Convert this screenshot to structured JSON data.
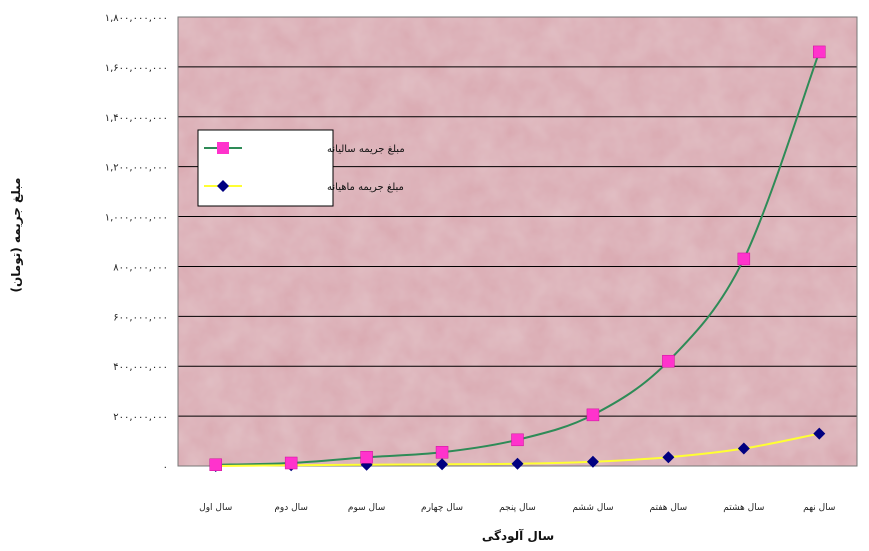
{
  "chart_data": {
    "type": "line",
    "title": "",
    "xlabel": "سال آلودگی",
    "ylabel": "مبلغ جریمه (تومان)",
    "categories": [
      "سال اول",
      "سال دوم",
      "سال سوم",
      "سال چهارم",
      "سال پنجم",
      "سال ششم",
      "سال هفتم",
      "سال هشتم",
      "سال نهم"
    ],
    "ylim": [
      0,
      1800000000
    ],
    "yticks": [
      0,
      200000000,
      400000000,
      600000000,
      800000000,
      1000000000,
      1200000000,
      1400000000,
      1600000000,
      1800000000
    ],
    "ytick_labels": [
      "۰",
      "۲۰۰,۰۰۰,۰۰۰",
      "۴۰۰,۰۰۰,۰۰۰",
      "۶۰۰,۰۰۰,۰۰۰",
      "۸۰۰,۰۰۰,۰۰۰",
      "۱,۰۰۰,۰۰۰,۰۰۰",
      "۱,۲۰۰,۰۰۰,۰۰۰",
      "۱,۴۰۰,۰۰۰,۰۰۰",
      "۱,۶۰۰,۰۰۰,۰۰۰",
      "۱,۸۰۰,۰۰۰,۰۰۰"
    ],
    "grid": true,
    "legend_position": "left",
    "series": [
      {
        "name": "مبلغ جریمه سالیانه",
        "values": [
          5000000,
          12000000,
          35000000,
          55000000,
          105000000,
          205000000,
          420000000,
          830000000,
          1660000000
        ],
        "line_color": "#2e8b57",
        "marker": "square",
        "marker_color": "#ff33cc"
      },
      {
        "name": "مبلغ جریمه ماهیانه",
        "values": [
          0,
          3000000,
          5000000,
          7000000,
          9000000,
          17000000,
          35000000,
          70000000,
          130000000
        ],
        "line_color": "#ffff33",
        "marker": "diamond",
        "marker_color": "#000080"
      }
    ],
    "plot_background": "#d9a8b0",
    "grid_color": "#000000"
  }
}
